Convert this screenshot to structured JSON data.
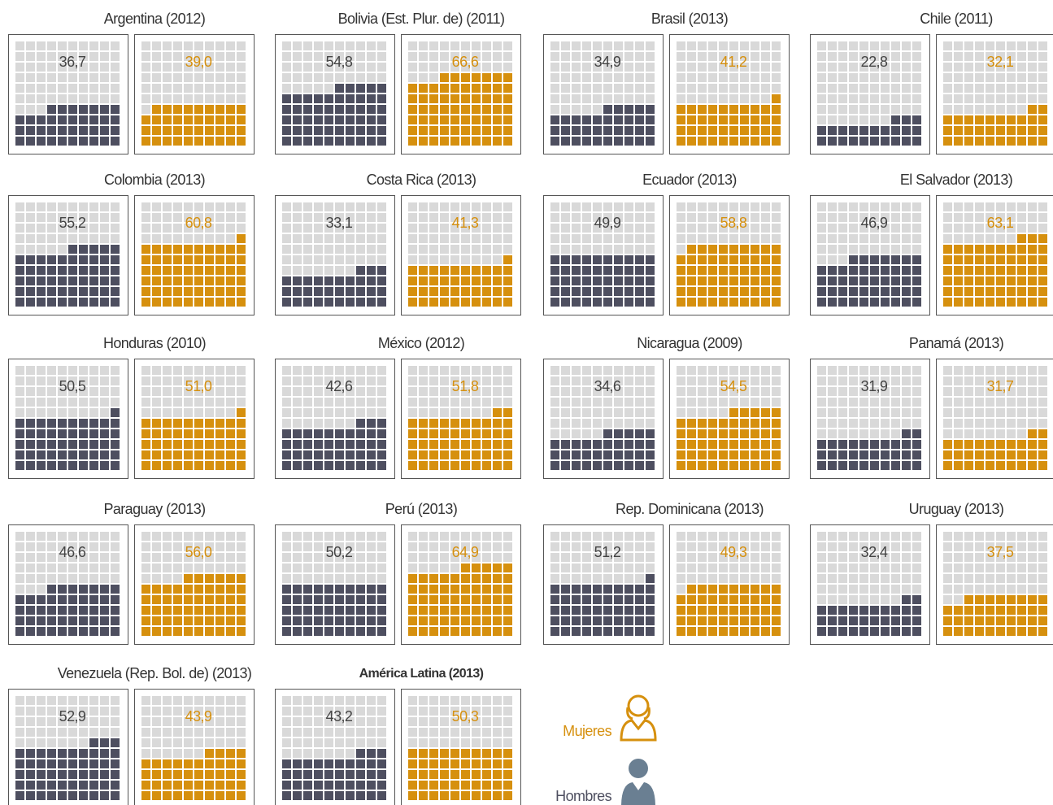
{
  "chart_data": {
    "type": "waffle",
    "series": [
      {
        "name": "Hombres",
        "color": "#4e4f60"
      },
      {
        "name": "Mujeres",
        "color": "#d6900e"
      }
    ],
    "empty_color": "#d9d9d9",
    "panels": [
      {
        "title": "Argentina (2012)",
        "values": [
          36.7,
          39.0
        ],
        "value_labels": [
          "36,7",
          "39,0"
        ]
      },
      {
        "title": "Bolivia (Est. Plur. de) (2011)",
        "values": [
          54.8,
          66.6
        ],
        "value_labels": [
          "54,8",
          "66,6"
        ]
      },
      {
        "title": "Brasil (2013)",
        "values": [
          34.9,
          41.2
        ],
        "value_labels": [
          "34,9",
          "41,2"
        ]
      },
      {
        "title": "Chile (2011)",
        "values": [
          22.8,
          32.1
        ],
        "value_labels": [
          "22,8",
          "32,1"
        ]
      },
      {
        "title": "Colombia (2013)",
        "values": [
          55.2,
          60.8
        ],
        "value_labels": [
          "55,2",
          "60,8"
        ]
      },
      {
        "title": "Costa Rica (2013)",
        "values": [
          33.1,
          41.3
        ],
        "value_labels": [
          "33,1",
          "41,3"
        ]
      },
      {
        "title": "Ecuador (2013)",
        "values": [
          49.9,
          58.8
        ],
        "value_labels": [
          "49,9",
          "58,8"
        ]
      },
      {
        "title": "El Salvador (2013)",
        "values": [
          46.9,
          63.1
        ],
        "value_labels": [
          "46,9",
          "63,1"
        ]
      },
      {
        "title": "Honduras (2010)",
        "values": [
          50.5,
          51.0
        ],
        "value_labels": [
          "50,5",
          "51,0"
        ]
      },
      {
        "title": "México (2012)",
        "values": [
          42.6,
          51.8
        ],
        "value_labels": [
          "42,6",
          "51,8"
        ]
      },
      {
        "title": "Nicaragua (2009)",
        "values": [
          34.6,
          54.5
        ],
        "value_labels": [
          "34,6",
          "54,5"
        ]
      },
      {
        "title": "Panamá (2013)",
        "values": [
          31.9,
          31.7
        ],
        "value_labels": [
          "31,9",
          "31,7"
        ]
      },
      {
        "title": "Paraguay (2013)",
        "values": [
          46.6,
          56.0
        ],
        "value_labels": [
          "46,6",
          "56,0"
        ]
      },
      {
        "title": "Perú (2013)",
        "values": [
          50.2,
          64.9
        ],
        "value_labels": [
          "50,2",
          "64,9"
        ]
      },
      {
        "title": "Rep. Dominicana (2013)",
        "values": [
          51.2,
          49.3
        ],
        "value_labels": [
          "51,2",
          "49,3"
        ]
      },
      {
        "title": "Uruguay (2013)",
        "values": [
          32.4,
          37.5
        ],
        "value_labels": [
          "32,4",
          "37,5"
        ]
      },
      {
        "title": "Venezuela (Rep. Bol. de) (2013)",
        "values": [
          52.9,
          43.9
        ],
        "value_labels": [
          "52,9",
          "43,9"
        ]
      },
      {
        "title": "América Latina (2013)",
        "values": [
          43.2,
          50.3
        ],
        "value_labels": [
          "43,2",
          "50,3"
        ],
        "emphasis": true
      }
    ]
  }
}
